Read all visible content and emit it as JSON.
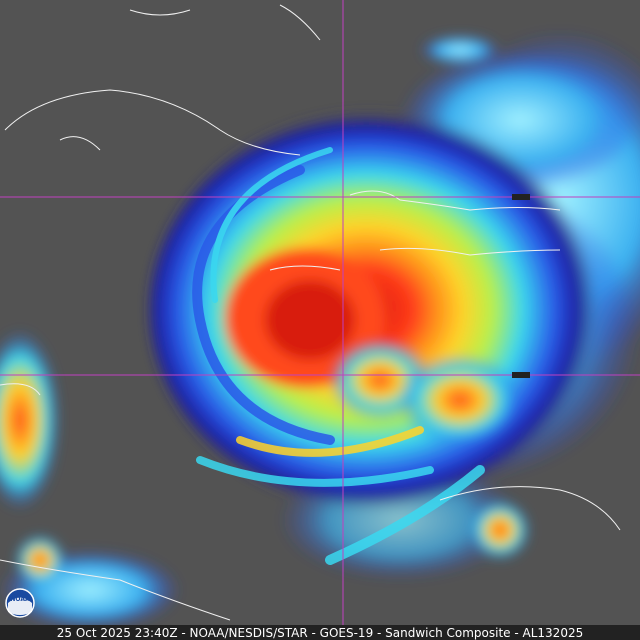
{
  "caption": "25 Oct 2025 23:40Z - NOAA/NESDIS/STAR - GOES-19 - Sandwich Composite - AL132025",
  "logo": "NOAA"
}
